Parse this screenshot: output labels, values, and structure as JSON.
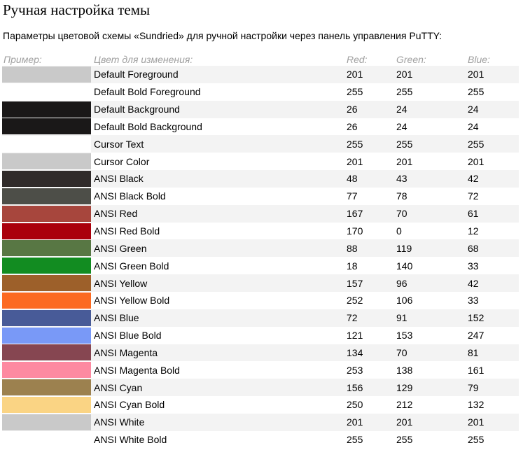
{
  "title": "Ручная настройка темы",
  "intro": "Параметры цветовой схемы «Sundried» для ручной настройки через панель управления PuTTY:",
  "table": {
    "headers": {
      "sample": "Пример:",
      "name": "Цвет для изменения:",
      "red": "Red:",
      "green": "Green:",
      "blue": "Blue:"
    },
    "rows": [
      {
        "name": "Default Foreground",
        "r": "201",
        "g": "201",
        "b": "201",
        "hex": "#c9c9c9"
      },
      {
        "name": "Default Bold Foreground",
        "r": "255",
        "g": "255",
        "b": "255",
        "hex": "#ffffff"
      },
      {
        "name": "Default Background",
        "r": "26",
        "g": "24",
        "b": "24",
        "hex": "#1a1818"
      },
      {
        "name": "Default Bold Background",
        "r": "26",
        "g": "24",
        "b": "24",
        "hex": "#1a1818"
      },
      {
        "name": "Cursor Text",
        "r": "255",
        "g": "255",
        "b": "255",
        "hex": "#ffffff"
      },
      {
        "name": "Cursor Color",
        "r": "201",
        "g": "201",
        "b": "201",
        "hex": "#c9c9c9"
      },
      {
        "name": "ANSI Black",
        "r": "48",
        "g": "43",
        "b": "42",
        "hex": "#302b2a"
      },
      {
        "name": "ANSI Black Bold",
        "r": "77",
        "g": "78",
        "b": "72",
        "hex": "#4d4e48"
      },
      {
        "name": "ANSI Red",
        "r": "167",
        "g": "70",
        "b": "61",
        "hex": "#a7463d"
      },
      {
        "name": "ANSI Red Bold",
        "r": "170",
        "g": "0",
        "b": "12",
        "hex": "#aa000c"
      },
      {
        "name": "ANSI Green",
        "r": "88",
        "g": "119",
        "b": "68",
        "hex": "#587744"
      },
      {
        "name": "ANSI Green Bold",
        "r": "18",
        "g": "140",
        "b": "33",
        "hex": "#128c21"
      },
      {
        "name": "ANSI Yellow",
        "r": "157",
        "g": "96",
        "b": "42",
        "hex": "#9d602a"
      },
      {
        "name": "ANSI Yellow Bold",
        "r": "252",
        "g": "106",
        "b": "33",
        "hex": "#fc6a21"
      },
      {
        "name": "ANSI Blue",
        "r": "72",
        "g": "91",
        "b": "152",
        "hex": "#485b98"
      },
      {
        "name": "ANSI Blue Bold",
        "r": "121",
        "g": "153",
        "b": "247",
        "hex": "#7999f7"
      },
      {
        "name": "ANSI Magenta",
        "r": "134",
        "g": "70",
        "b": "81",
        "hex": "#864651"
      },
      {
        "name": "ANSI Magenta Bold",
        "r": "253",
        "g": "138",
        "b": "161",
        "hex": "#fd8aa1"
      },
      {
        "name": "ANSI Cyan",
        "r": "156",
        "g": "129",
        "b": "79",
        "hex": "#9c814f"
      },
      {
        "name": "ANSI Cyan Bold",
        "r": "250",
        "g": "212",
        "b": "132",
        "hex": "#fad484"
      },
      {
        "name": "ANSI White",
        "r": "201",
        "g": "201",
        "b": "201",
        "hex": "#c9c9c9"
      },
      {
        "name": "ANSI White Bold",
        "r": "255",
        "g": "255",
        "b": "255",
        "hex": "#ffffff"
      }
    ]
  }
}
